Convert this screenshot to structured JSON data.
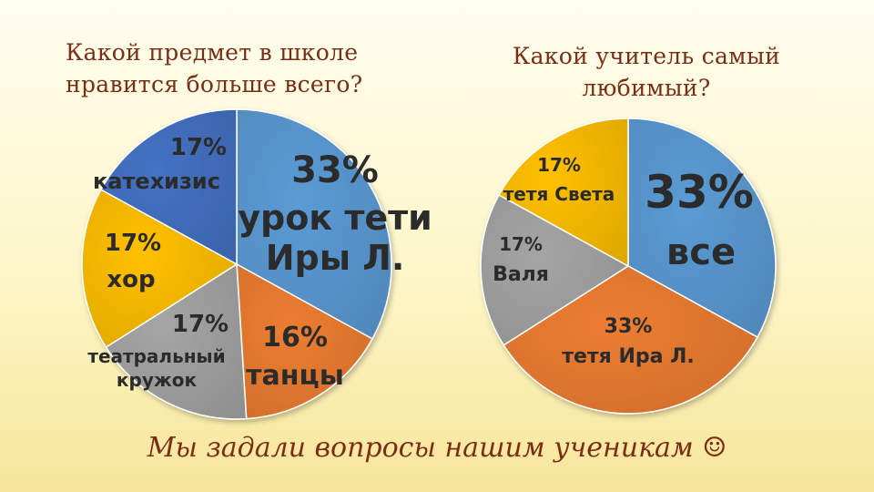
{
  "chart_data": [
    {
      "type": "pie",
      "title": "Какой предмет в школе нравится больше всего?",
      "series": [
        {
          "slices": [
            {
              "label": "урок тети Иры Л.",
              "value": 33,
              "value_label": "33%",
              "color": "#5b9bd5"
            },
            {
              "label": "танцы",
              "value": 16,
              "value_label": "16%",
              "color": "#ed7d31"
            },
            {
              "label": "театральный кружок",
              "value": 17,
              "value_label": "17%",
              "color": "#a5a5a5"
            },
            {
              "label": "хор",
              "value": 17,
              "value_label": "17%",
              "color": "#ffc000"
            },
            {
              "label": "катехизис",
              "value": 17,
              "value_label": "17%",
              "color": "#4472c4"
            }
          ]
        }
      ]
    },
    {
      "type": "pie",
      "title": "Какой учитель самый любимый?",
      "series": [
        {
          "slices": [
            {
              "label": "все",
              "value": 33,
              "value_label": "33%",
              "color": "#5b9bd5"
            },
            {
              "label": "тетя Ира Л.",
              "value": 33,
              "value_label": "33%",
              "color": "#ed7d31"
            },
            {
              "label": "Валя",
              "value": 17,
              "value_label": "17%",
              "color": "#a5a5a5"
            },
            {
              "label": "тетя Света",
              "value": 17,
              "value_label": "17%",
              "color": "#ffc000"
            }
          ]
        }
      ]
    }
  ],
  "titles": {
    "left_line1": "Какой предмет в школе",
    "left_line2": "нравится больше всего?",
    "right_line1": "Какой учитель самый",
    "right_line2": "любимый?"
  },
  "footer": {
    "text": "Мы задали вопросы нашим ученикам",
    "emoji": "☺"
  }
}
